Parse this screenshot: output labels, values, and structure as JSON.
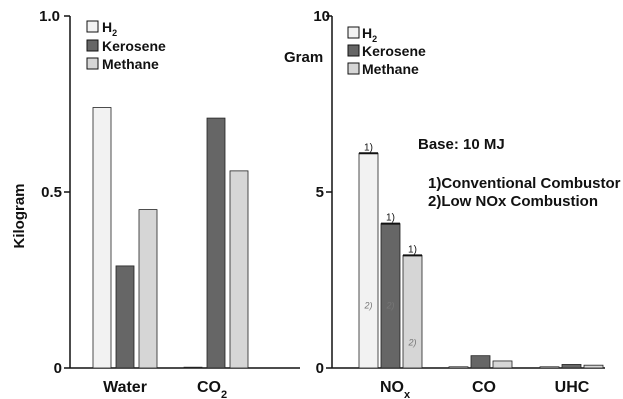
{
  "chart_data": [
    {
      "type": "bar",
      "ylabel": "Kilogram",
      "ylim": [
        0,
        1.0
      ],
      "yticks": [
        "0",
        "0.5",
        "1.0"
      ],
      "categories": [
        "Water",
        "CO2"
      ],
      "category_labels": [
        {
          "base": "Water",
          "sub": ""
        },
        {
          "base": "CO",
          "sub": "2"
        }
      ],
      "series": [
        {
          "name": "H2",
          "label_base": "H",
          "label_sub": "2",
          "color": "#f2f2f2",
          "values": [
            0.74,
            0.0
          ]
        },
        {
          "name": "Kerosene",
          "label_base": "Kerosene",
          "label_sub": "",
          "color": "#666666",
          "values": [
            0.29,
            0.71
          ]
        },
        {
          "name": "Methane",
          "label_base": "Methane",
          "label_sub": "",
          "color": "#d6d6d6",
          "values": [
            0.45,
            0.56
          ]
        }
      ]
    },
    {
      "type": "bar",
      "ylabel": "Gram",
      "ylim": [
        0,
        10
      ],
      "yticks": [
        "0",
        "5",
        "10"
      ],
      "categories": [
        "NOx",
        "CO",
        "UHC"
      ],
      "category_labels": [
        {
          "base": "NO",
          "sub": "x"
        },
        {
          "base": "CO",
          "sub": ""
        },
        {
          "base": "UHC",
          "sub": ""
        }
      ],
      "series": [
        {
          "name": "H2",
          "label_base": "H",
          "label_sub": "2",
          "color": "#f2f2f2",
          "values": [
            6.1,
            0.03,
            0.03
          ],
          "low_nox": [
            1.8,
            null,
            null
          ]
        },
        {
          "name": "Kerosene",
          "label_base": "Kerosene",
          "label_sub": "",
          "color": "#666666",
          "values": [
            4.1,
            0.35,
            0.1
          ],
          "low_nox": [
            1.8,
            null,
            null
          ]
        },
        {
          "name": "Methane",
          "label_base": "Methane",
          "label_sub": "",
          "color": "#d6d6d6",
          "values": [
            3.2,
            0.2,
            0.08
          ],
          "low_nox": [
            0.75,
            null,
            null
          ]
        }
      ],
      "annotations": {
        "base": "Base: 10 MJ",
        "line1": "1)Conventional Combustor",
        "line2": "2)Low NOx Combustion",
        "mark1": "1)",
        "mark2": "2)"
      }
    }
  ]
}
